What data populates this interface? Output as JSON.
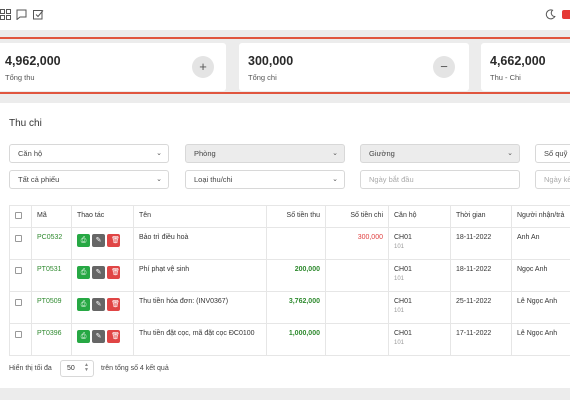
{
  "header": {
    "icons": [
      "grid-icon",
      "chat-icon",
      "checkbox-icon"
    ],
    "right_icons": [
      "moon-icon"
    ]
  },
  "summary": [
    {
      "value": "4,962,000",
      "label": "Tổng thu",
      "button_icon": "+"
    },
    {
      "value": "300,000",
      "label": "Tổng chi",
      "button_icon": "−"
    },
    {
      "value": "4,662,000",
      "label": "Thu - Chi"
    }
  ],
  "panel": {
    "title": "Thu chi",
    "filters": {
      "can_ho": "Căn hộ",
      "phong": "Phòng",
      "giuong": "Giường",
      "so_quy": "Sổ quỹ",
      "tat_ca_phieu": "Tất cả phiếu",
      "loai_thu_chi": "Loại thu/chi",
      "ngay_bat_dau_placeholder": "Ngày bắt đầu",
      "ngay_ket_placeholder": "Ngày kết"
    }
  },
  "table": {
    "headers": {
      "ma": "Mã",
      "thao_tac": "Thao tác",
      "ten": "Tên",
      "so_tien_thu": "Số tiền thu",
      "so_tien_chi": "Số tiền chi",
      "can_ho": "Căn hộ",
      "thoi_gian": "Thời gian",
      "nguoi": "Người nhận/trả"
    },
    "rows": [
      {
        "ma": "PC0532",
        "ten": "Bảo trì điều hoà",
        "thu": "",
        "chi": "300,000",
        "can_ho": "CH01",
        "phong": "101",
        "thoi_gian": "18-11-2022",
        "nguoi": "Anh An"
      },
      {
        "ma": "PT0531",
        "ten": "Phí phạt vệ sinh",
        "thu": "200,000",
        "chi": "",
        "can_ho": "CH01",
        "phong": "101",
        "thoi_gian": "18-11-2022",
        "nguoi": "Ngọc Anh"
      },
      {
        "ma": "PT0509",
        "ten": "Thu tiền hóa đơn: (INV0367)",
        "thu": "3,762,000",
        "chi": "",
        "can_ho": "CH01",
        "phong": "101",
        "thoi_gian": "25-11-2022",
        "nguoi": "Lê Ngọc Anh"
      },
      {
        "ma": "PT0396",
        "ten": "Thu tiền đặt cọc, mã đặt cọc ĐC0100",
        "thu": "1,000,000",
        "chi": "",
        "can_ho": "CH01",
        "phong": "101",
        "thoi_gian": "17-11-2022",
        "nguoi": "Lê Ngọc Anh"
      }
    ]
  },
  "footer": {
    "show_label": "Hiển thị tối đa",
    "page_size": "50",
    "total_label": "trên tổng số 4 kết quả"
  },
  "colors": {
    "accent_red": "#e0563f",
    "green": "#27a844",
    "danger": "#e04545"
  }
}
